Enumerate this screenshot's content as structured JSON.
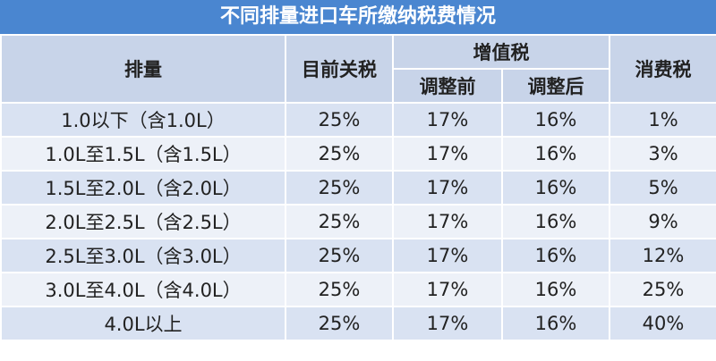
{
  "title": "不同排量进口车所缴纳税费情况",
  "header": {
    "displacement": "排量",
    "tariff": "目前关税",
    "vat": "增值税",
    "vat_before": "调整前",
    "vat_after": "调整后",
    "consumption_tax": "消费税"
  },
  "rows": [
    [
      "1.0以下（含1.0L）",
      "25%",
      "17%",
      "16%",
      "1%"
    ],
    [
      "1.0L至1.5L（含1.5L）",
      "25%",
      "17%",
      "16%",
      "3%"
    ],
    [
      "1.5L至2.0L（含2.0L）",
      "25%",
      "17%",
      "16%",
      "5%"
    ],
    [
      "2.0L至2.5L（含2.5L）",
      "25%",
      "17%",
      "16%",
      "9%"
    ],
    [
      "2.5L至3.0L（含3.0L）",
      "25%",
      "17%",
      "16%",
      "12%"
    ],
    [
      "3.0L至4.0L（含4.0L）",
      "25%",
      "17%",
      "16%",
      "25%"
    ],
    [
      "4.0L以上",
      "25%",
      "17%",
      "16%",
      "40%"
    ]
  ]
}
